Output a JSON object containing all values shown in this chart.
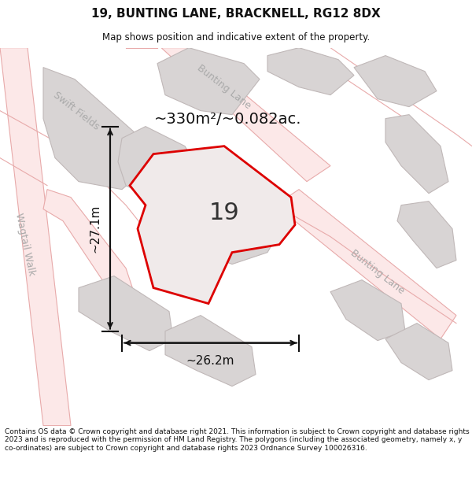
{
  "title": "19, BUNTING LANE, BRACKNELL, RG12 8DX",
  "subtitle": "Map shows position and indicative extent of the property.",
  "area_text": "~330m²/~0.082ac.",
  "plot_number": "19",
  "dim_width": "~26.2m",
  "dim_height": "~27.1m",
  "footer": "Contains OS data © Crown copyright and database right 2021. This information is subject to Crown copyright and database rights 2023 and is reproduced with the permission of HM Land Registry. The polygons (including the associated geometry, namely x, y co-ordinates) are subject to Crown copyright and database rights 2023 Ordnance Survey 100026316.",
  "map_bg": "#ffffff",
  "plot_fill": "#e8e4e4",
  "plot_edge": "#dd0000",
  "building_fill": "#d8d4d4",
  "building_edge": "#c0b8b8",
  "road_fill": "#fce8e8",
  "road_edge": "#e8aaaa",
  "road_line": "#e8aaaa",
  "text_color": "#111111",
  "road_label_color": "#aaaaaa",
  "dim_color": "#111111",
  "label_swift_fields": "Swift Fields",
  "label_bunting_lane_top": "Bunting Lane",
  "label_bunting_lane_right": "Bunting Lane",
  "label_wagtail_walk": "Wagtail Walk"
}
